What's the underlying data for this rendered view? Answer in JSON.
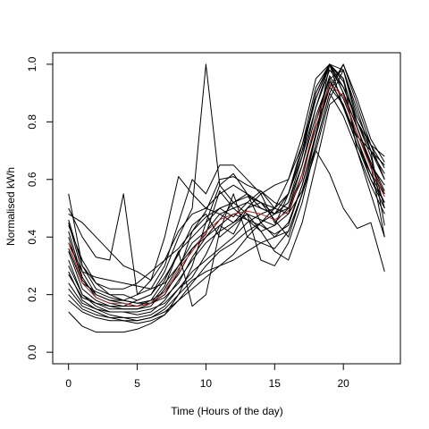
{
  "chart_data": {
    "type": "line",
    "title": "",
    "xlabel": "Time (Hours of the day)",
    "ylabel": "Normalised kWh",
    "xlim": [
      -1.15,
      24.15
    ],
    "ylim": [
      -0.04,
      1.04
    ],
    "x_ticks": [
      0,
      5,
      10,
      15,
      20
    ],
    "y_ticks": [
      0.0,
      0.2,
      0.4,
      0.6,
      0.8,
      1.0
    ],
    "x_tick_labels": [
      "0",
      "5",
      "10",
      "15",
      "20"
    ],
    "y_tick_labels": [
      "0.0",
      "0.2",
      "0.4",
      "0.6",
      "0.8",
      "1.0"
    ],
    "grid": false,
    "legend": "none",
    "x": [
      0,
      1,
      2,
      3,
      4,
      5,
      6,
      7,
      8,
      9,
      10,
      11,
      12,
      13,
      14,
      15,
      16,
      17,
      18,
      19,
      20,
      21,
      22,
      23
    ],
    "series": [
      {
        "color": "#000000",
        "values": [
          0.55,
          0.3,
          0.22,
          0.2,
          0.2,
          0.18,
          0.2,
          0.28,
          0.4,
          0.5,
          1.0,
          0.58,
          0.52,
          0.55,
          0.5,
          0.48,
          0.55,
          0.7,
          0.9,
          1.0,
          0.85,
          0.75,
          0.7,
          0.65
        ]
      },
      {
        "color": "#000000",
        "values": [
          0.5,
          0.4,
          0.33,
          0.32,
          0.55,
          0.2,
          0.22,
          0.3,
          0.45,
          0.6,
          0.55,
          0.65,
          0.65,
          0.6,
          0.55,
          0.45,
          0.5,
          0.65,
          0.85,
          1.0,
          0.98,
          0.8,
          0.7,
          0.6
        ]
      },
      {
        "color": "#000000",
        "values": [
          0.48,
          0.45,
          0.4,
          0.35,
          0.3,
          0.28,
          0.25,
          0.32,
          0.42,
          0.48,
          0.5,
          0.55,
          0.58,
          0.55,
          0.52,
          0.5,
          0.6,
          0.75,
          0.95,
          1.0,
          0.9,
          0.78,
          0.65,
          0.55
        ]
      },
      {
        "color": "#000000",
        "values": [
          0.45,
          0.28,
          0.2,
          0.18,
          0.17,
          0.16,
          0.18,
          0.25,
          0.35,
          0.4,
          0.45,
          0.5,
          0.52,
          0.48,
          0.42,
          0.44,
          0.55,
          0.7,
          0.88,
          1.0,
          0.92,
          0.8,
          0.68,
          0.5
        ]
      },
      {
        "color": "#000000",
        "values": [
          0.4,
          0.25,
          0.2,
          0.18,
          0.18,
          0.2,
          0.25,
          0.4,
          0.61,
          0.55,
          0.5,
          0.48,
          0.45,
          0.5,
          0.52,
          0.46,
          0.4,
          0.55,
          0.75,
          1.0,
          0.95,
          0.7,
          0.55,
          0.4
        ]
      },
      {
        "color": "#000000",
        "values": [
          0.35,
          0.22,
          0.18,
          0.16,
          0.15,
          0.15,
          0.16,
          0.22,
          0.3,
          0.38,
          0.42,
          0.48,
          0.5,
          0.52,
          0.5,
          0.48,
          0.52,
          0.68,
          0.85,
          0.98,
          0.92,
          0.8,
          0.7,
          0.62
        ]
      },
      {
        "color": "#000000",
        "values": [
          0.3,
          0.2,
          0.16,
          0.14,
          0.14,
          0.13,
          0.14,
          0.18,
          0.25,
          0.32,
          0.38,
          0.42,
          0.45,
          0.48,
          0.46,
          0.44,
          0.48,
          0.62,
          0.8,
          0.96,
          0.88,
          0.76,
          0.65,
          0.58
        ]
      },
      {
        "color": "#000000",
        "values": [
          0.28,
          0.18,
          0.15,
          0.13,
          0.12,
          0.12,
          0.13,
          0.16,
          0.22,
          0.28,
          0.32,
          0.36,
          0.4,
          0.45,
          0.48,
          0.5,
          0.55,
          0.72,
          0.88,
          1.0,
          0.9,
          0.78,
          0.66,
          0.56
        ]
      },
      {
        "color": "#000000",
        "values": [
          0.22,
          0.16,
          0.14,
          0.12,
          0.11,
          0.11,
          0.12,
          0.14,
          0.18,
          0.24,
          0.3,
          0.35,
          0.38,
          0.42,
          0.45,
          0.48,
          0.52,
          0.65,
          0.82,
          0.95,
          0.85,
          0.72,
          0.62,
          0.52
        ]
      },
      {
        "color": "#000000",
        "values": [
          0.2,
          0.15,
          0.13,
          0.12,
          0.12,
          0.11,
          0.12,
          0.15,
          0.2,
          0.25,
          0.28,
          0.3,
          0.32,
          0.35,
          0.38,
          0.4,
          0.45,
          0.58,
          0.75,
          0.92,
          0.86,
          0.74,
          0.6,
          0.5
        ]
      },
      {
        "color": "#000000",
        "values": [
          0.18,
          0.14,
          0.12,
          0.11,
          0.11,
          0.1,
          0.11,
          0.13,
          0.2,
          0.3,
          0.45,
          0.58,
          0.62,
          0.55,
          0.45,
          0.4,
          0.42,
          0.55,
          0.7,
          0.62,
          0.5,
          0.43,
          0.45,
          0.28
        ]
      },
      {
        "color": "#000000",
        "values": [
          0.14,
          0.09,
          0.07,
          0.07,
          0.07,
          0.08,
          0.1,
          0.13,
          0.18,
          0.22,
          0.26,
          0.3,
          0.34,
          0.4,
          0.45,
          0.5,
          0.55,
          0.68,
          0.9,
          1.0,
          0.95,
          0.78,
          0.65,
          0.4
        ]
      },
      {
        "color": "#000000",
        "values": [
          0.46,
          0.3,
          0.24,
          0.22,
          0.22,
          0.24,
          0.28,
          0.32,
          0.36,
          0.42,
          0.47,
          0.5,
          0.47,
          0.52,
          0.56,
          0.52,
          0.5,
          0.6,
          0.8,
          0.95,
          0.98,
          0.82,
          0.72,
          0.6
        ]
      },
      {
        "color": "#000000",
        "values": [
          0.38,
          0.28,
          0.26,
          0.25,
          0.24,
          0.23,
          0.22,
          0.24,
          0.3,
          0.36,
          0.4,
          0.44,
          0.48,
          0.46,
          0.42,
          0.35,
          0.32,
          0.45,
          0.65,
          0.86,
          0.9,
          0.74,
          0.62,
          0.55
        ]
      },
      {
        "color": "#000000",
        "values": [
          0.42,
          0.26,
          0.19,
          0.17,
          0.16,
          0.16,
          0.17,
          0.19,
          0.24,
          0.33,
          0.4,
          0.46,
          0.52,
          0.54,
          0.52,
          0.48,
          0.5,
          0.62,
          0.78,
          0.92,
          1.0,
          0.86,
          0.72,
          0.64
        ]
      },
      {
        "color": "#000000",
        "values": [
          0.32,
          0.2,
          0.17,
          0.15,
          0.15,
          0.15,
          0.17,
          0.23,
          0.35,
          0.16,
          0.2,
          0.42,
          0.55,
          0.4,
          0.38,
          0.36,
          0.42,
          0.55,
          0.7,
          0.88,
          0.98,
          0.84,
          0.7,
          0.44
        ]
      },
      {
        "color": "#000000",
        "values": [
          0.27,
          0.19,
          0.17,
          0.16,
          0.16,
          0.18,
          0.2,
          0.26,
          0.34,
          0.44,
          0.48,
          0.4,
          0.44,
          0.48,
          0.32,
          0.3,
          0.38,
          0.52,
          0.72,
          0.9,
          0.82,
          0.7,
          0.58,
          0.48
        ]
      },
      {
        "color": "#000000",
        "values": [
          0.44,
          0.32,
          0.24,
          0.2,
          0.18,
          0.17,
          0.18,
          0.21,
          0.27,
          0.36,
          0.41,
          0.56,
          0.5,
          0.46,
          0.44,
          0.41,
          0.44,
          0.58,
          0.76,
          0.94,
          0.86,
          0.72,
          0.6,
          0.52
        ]
      },
      {
        "color": "#000000",
        "values": [
          0.36,
          0.24,
          0.21,
          0.19,
          0.18,
          0.17,
          0.17,
          0.2,
          0.28,
          0.42,
          0.49,
          0.6,
          0.61,
          0.58,
          0.56,
          0.5,
          0.48,
          0.56,
          0.72,
          0.9,
          1.0,
          0.88,
          0.74,
          0.66
        ]
      },
      {
        "color": "#000000",
        "values": [
          0.24,
          0.17,
          0.15,
          0.14,
          0.14,
          0.14,
          0.15,
          0.17,
          0.22,
          0.26,
          0.34,
          0.44,
          0.41,
          0.5,
          0.55,
          0.58,
          0.6,
          0.72,
          0.92,
          1.0,
          0.94,
          0.8,
          0.72,
          0.68
        ]
      },
      {
        "color": "#B22222",
        "values": [
          0.38,
          0.24,
          0.19,
          0.17,
          0.17,
          0.16,
          0.17,
          0.21,
          0.29,
          0.35,
          0.42,
          0.46,
          0.48,
          0.49,
          0.48,
          0.46,
          0.49,
          0.62,
          0.8,
          0.93,
          0.89,
          0.76,
          0.64,
          0.54
        ]
      }
    ]
  }
}
